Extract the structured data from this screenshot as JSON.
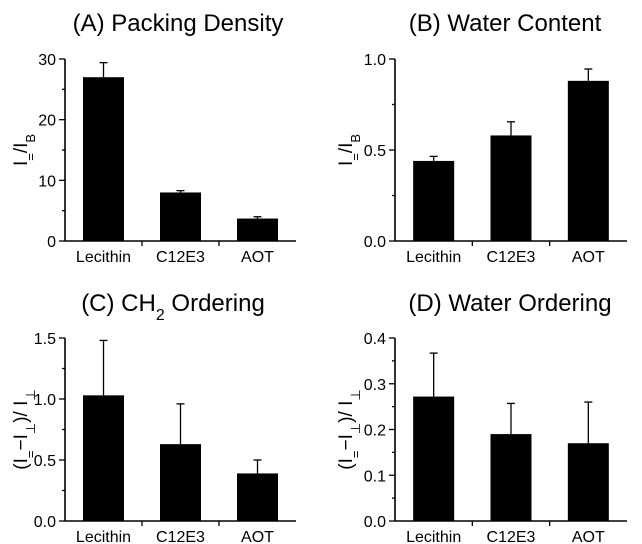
{
  "chart_data": [
    {
      "type": "bar",
      "title": "(A) Packing Density",
      "ylabel_parts": [
        {
          "t": "I",
          "shift": "0"
        },
        {
          "t": "=",
          "shift": "sub"
        },
        {
          "t": "/I",
          "shift": "0"
        },
        {
          "t": "B",
          "shift": "sub"
        }
      ],
      "categories": [
        "Lecithin",
        "C12E3",
        "AOT"
      ],
      "values": [
        27.0,
        8.0,
        3.7
      ],
      "errors": [
        2.4,
        0.3,
        0.3
      ],
      "ylim": [
        0,
        30
      ],
      "yticks": [
        0,
        10,
        20,
        30
      ],
      "ytick_labels": [
        "0",
        "10",
        "20",
        "30"
      ],
      "minor_ticks": [
        5,
        15,
        25
      ],
      "grid": false
    },
    {
      "type": "bar",
      "title": "(B) Water Content",
      "ylabel_parts": [
        {
          "t": "I",
          "shift": "0"
        },
        {
          "t": "=",
          "shift": "sub"
        },
        {
          "t": "/I",
          "shift": "0"
        },
        {
          "t": "B",
          "shift": "sub"
        }
      ],
      "categories": [
        "Lecithin",
        "C12E3",
        "AOT"
      ],
      "values": [
        0.44,
        0.58,
        0.88
      ],
      "errors": [
        0.025,
        0.075,
        0.065
      ],
      "ylim": [
        0,
        1.0
      ],
      "yticks": [
        0,
        0.5,
        1.0
      ],
      "ytick_labels": [
        "0.0",
        "0.5",
        "1.0"
      ],
      "minor_ticks": [
        0.25,
        0.75
      ],
      "grid": false
    },
    {
      "type": "bar",
      "title_parts": [
        {
          "t": "(C) CH",
          "shift": "0"
        },
        {
          "t": "2",
          "shift": "sub"
        },
        {
          "t": " Ordering",
          "shift": "0"
        }
      ],
      "ylabel_parts": [
        {
          "t": "(I",
          "shift": "0"
        },
        {
          "t": "=",
          "shift": "sub"
        },
        {
          "t": "−I",
          "shift": "0"
        },
        {
          "t": "⊥",
          "shift": "sub"
        },
        {
          "t": ")/ I",
          "shift": "0"
        },
        {
          "t": "⊥",
          "shift": "sub"
        }
      ],
      "categories": [
        "Lecithin",
        "C12E3",
        "AOT"
      ],
      "values": [
        1.03,
        0.63,
        0.39
      ],
      "errors": [
        0.45,
        0.33,
        0.11
      ],
      "ylim": [
        0,
        1.5
      ],
      "yticks": [
        0,
        0.5,
        1.0,
        1.5
      ],
      "ytick_labels": [
        "0.0",
        "0.5",
        "1.0",
        "1.5"
      ],
      "minor_ticks": [
        0.25,
        0.75,
        1.25
      ],
      "grid": false
    },
    {
      "type": "bar",
      "title": "(D) Water Ordering",
      "ylabel_parts": [
        {
          "t": "(I",
          "shift": "0"
        },
        {
          "t": "=",
          "shift": "sub"
        },
        {
          "t": "−I",
          "shift": "0"
        },
        {
          "t": "⊥",
          "shift": "sub"
        },
        {
          "t": ")/ I",
          "shift": "0"
        },
        {
          "t": "⊥",
          "shift": "sub"
        }
      ],
      "categories": [
        "Lecithin",
        "C12E3",
        "AOT"
      ],
      "values": [
        0.272,
        0.19,
        0.17
      ],
      "errors": [
        0.095,
        0.067,
        0.09
      ],
      "ylim": [
        0,
        0.4
      ],
      "yticks": [
        0,
        0.1,
        0.2,
        0.3,
        0.4
      ],
      "ytick_labels": [
        "0.0",
        "0.1",
        "0.2",
        "0.3",
        "0.4"
      ],
      "minor_ticks": [
        0.05,
        0.15,
        0.25,
        0.35
      ],
      "grid": false
    }
  ]
}
